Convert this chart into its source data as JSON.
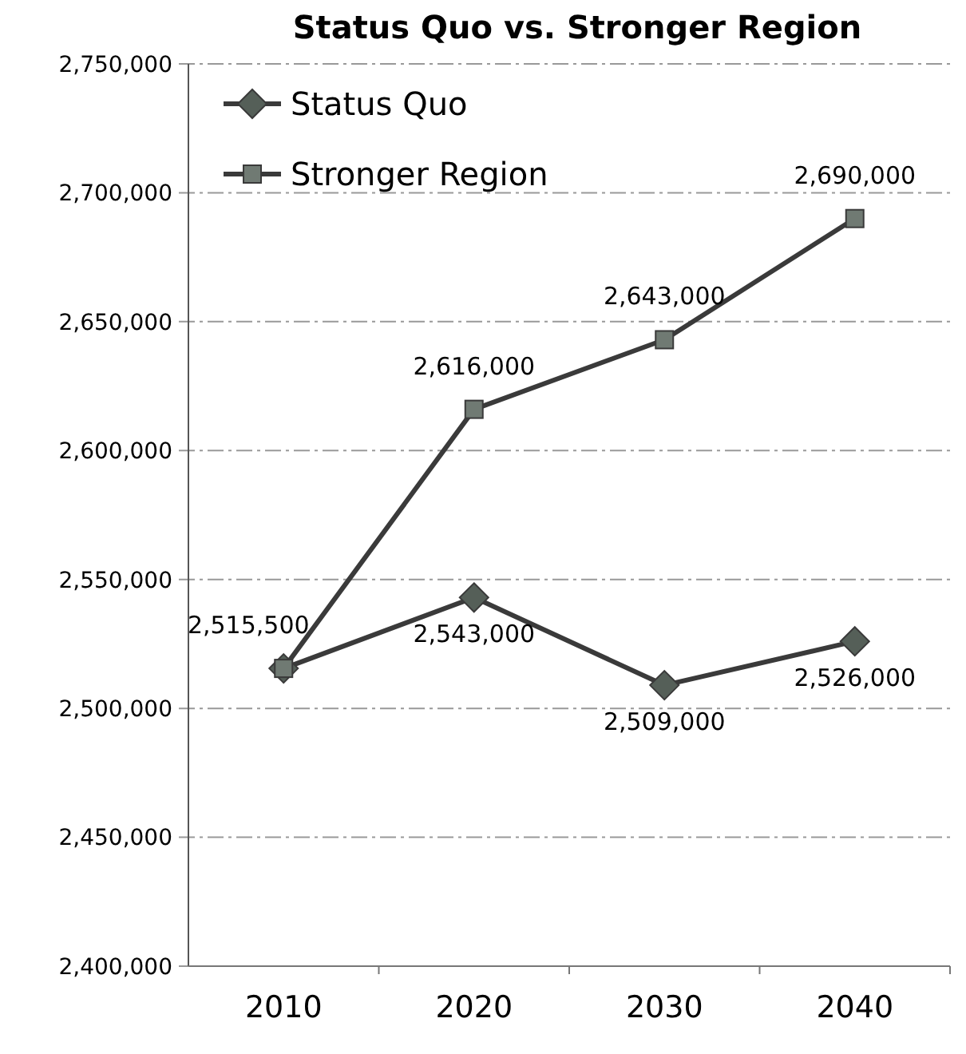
{
  "chart_data": {
    "type": "line",
    "title": "Status Quo vs. Stronger Region",
    "categories": [
      "2010",
      "2020",
      "2030",
      "2040"
    ],
    "series": [
      {
        "name": "Status Quo",
        "color": "#3a3a3a",
        "marker": "diamond",
        "values": [
          2515500,
          2543000,
          2509000,
          2526000
        ],
        "value_labels": [
          null,
          "2,543,000",
          "2,509,000",
          "2,526,000"
        ]
      },
      {
        "name": "Stronger Region",
        "color": "#3a3a3a",
        "marker": "square",
        "values": [
          2515500,
          2616000,
          2643000,
          2690000
        ],
        "value_labels": [
          "2,515,500",
          "2,616,000",
          "2,643,000",
          "2,690,000"
        ]
      }
    ],
    "ylim": [
      2400000,
      2750000
    ],
    "yticks": [
      {
        "value": 2400000,
        "label": "2,400,000"
      },
      {
        "value": 2450000,
        "label": "2,450,000"
      },
      {
        "value": 2500000,
        "label": "2,500,000"
      },
      {
        "value": 2550000,
        "label": "2,550,000"
      },
      {
        "value": 2600000,
        "label": "2,600,000"
      },
      {
        "value": 2650000,
        "label": "2,650,000"
      },
      {
        "value": 2700000,
        "label": "2,700,000"
      },
      {
        "value": 2750000,
        "label": "2,750,000"
      }
    ],
    "grid": "y",
    "legend": "top left"
  }
}
